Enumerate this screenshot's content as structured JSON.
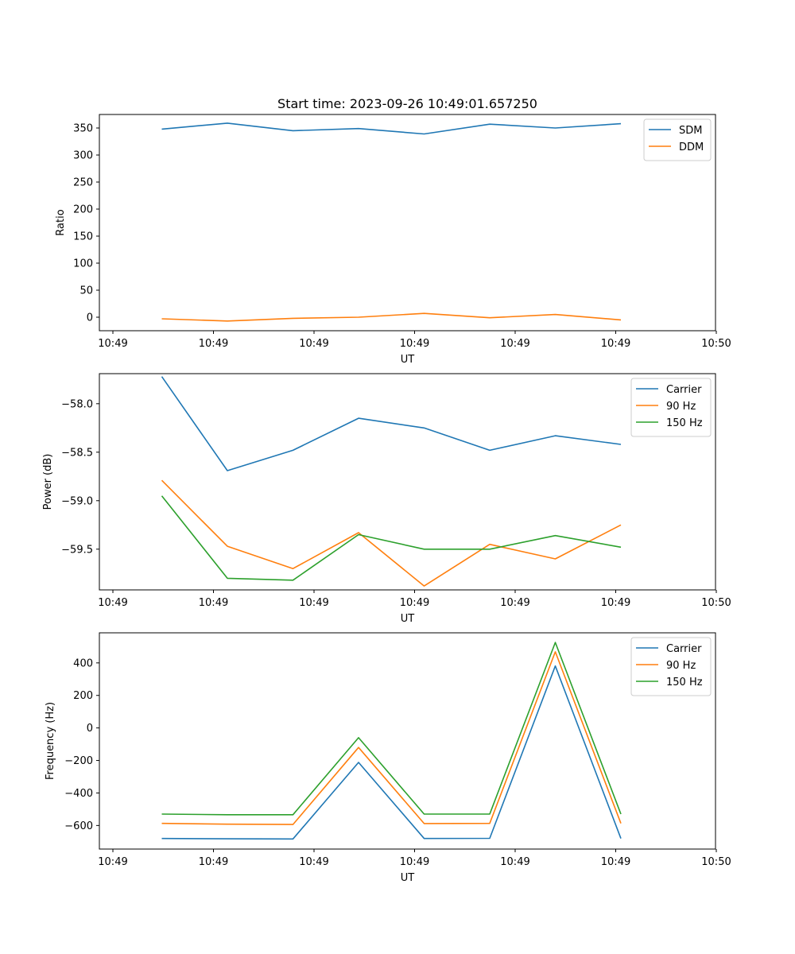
{
  "title": "Start time: 2023-09-26 10:49:01.657250",
  "chart_data": [
    {
      "type": "line",
      "title": "Start time: 2023-09-26 10:49:01.657250",
      "xlabel": "UT",
      "ylabel": "Ratio",
      "x_tick_labels": [
        "10:49",
        "10:49",
        "10:49",
        "10:49",
        "10:49",
        "10:49",
        "10:50"
      ],
      "y_ticks": [
        0,
        50,
        100,
        150,
        200,
        250,
        300,
        350
      ],
      "y_tick_labels": [
        "0",
        "50",
        "100",
        "150",
        "200",
        "250",
        "300",
        "350"
      ],
      "ylim": [
        -25,
        375
      ],
      "legend_position": "top-right",
      "series": [
        {
          "name": "SDM",
          "color": "#1f77b4",
          "values": [
            348,
            359,
            345,
            349,
            339,
            357,
            350,
            358
          ]
        },
        {
          "name": "DDM",
          "color": "#ff7f0e",
          "values": [
            -3,
            -7,
            -2,
            0,
            7,
            -1,
            5,
            -5
          ]
        }
      ]
    },
    {
      "type": "line",
      "title": "",
      "xlabel": "UT",
      "ylabel": "Power (dB)",
      "x_tick_labels": [
        "10:49",
        "10:49",
        "10:49",
        "10:49",
        "10:49",
        "10:49",
        "10:50"
      ],
      "y_ticks": [
        -58.0,
        -58.5,
        -59.0,
        -59.5
      ],
      "y_tick_labels": [
        "−58.0",
        "−58.5",
        "−59.0",
        "−59.5"
      ],
      "ylim": [
        -59.92,
        -57.69
      ],
      "legend_position": "top-right",
      "series": [
        {
          "name": "Carrier",
          "color": "#1f77b4",
          "values": [
            -57.72,
            -58.69,
            -58.48,
            -58.15,
            -58.25,
            -58.48,
            -58.33,
            -58.42
          ]
        },
        {
          "name": "90 Hz",
          "color": "#ff7f0e",
          "values": [
            -58.79,
            -59.47,
            -59.7,
            -59.33,
            -59.88,
            -59.45,
            -59.6,
            -59.25
          ]
        },
        {
          "name": "150 Hz",
          "color": "#2ca02c",
          "values": [
            -58.95,
            -59.8,
            -59.82,
            -59.35,
            -59.5,
            -59.5,
            -59.36,
            -59.48
          ]
        }
      ]
    },
    {
      "type": "line",
      "title": "",
      "xlabel": "UT",
      "ylabel": "Frequency (Hz)",
      "x_tick_labels": [
        "10:49",
        "10:49",
        "10:49",
        "10:49",
        "10:49",
        "10:49",
        "10:50"
      ],
      "y_ticks": [
        400,
        200,
        0,
        -200,
        -400,
        -600
      ],
      "y_tick_labels": [
        "400",
        "200",
        "0",
        "−200",
        "−400",
        "−600"
      ],
      "ylim": [
        -745,
        585
      ],
      "legend_position": "top-right",
      "series": [
        {
          "name": "Carrier",
          "color": "#1f77b4",
          "values": [
            -680,
            -682,
            -683,
            -212,
            -680,
            -679,
            381,
            -680
          ]
        },
        {
          "name": "90 Hz",
          "color": "#ff7f0e",
          "values": [
            -587,
            -592,
            -594,
            -120,
            -588,
            -587,
            468,
            -587
          ]
        },
        {
          "name": "150 Hz",
          "color": "#2ca02c",
          "values": [
            -530,
            -534,
            -534,
            -60,
            -530,
            -530,
            526,
            -530
          ]
        }
      ]
    }
  ]
}
